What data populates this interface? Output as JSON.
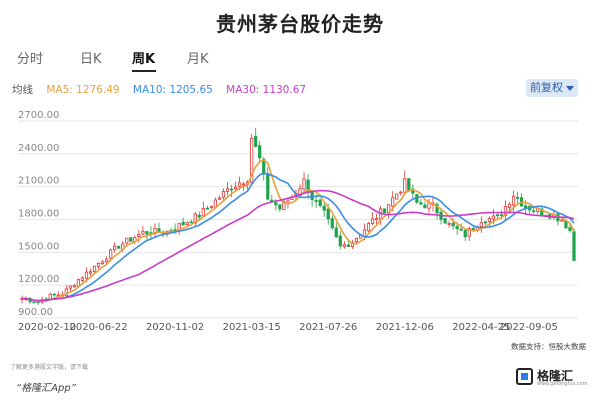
{
  "title": "贵州茅台股价走势",
  "tabs": [
    {
      "label": "分时",
      "active": false
    },
    {
      "label": "日K",
      "active": false
    },
    {
      "label": "周K",
      "active": true
    },
    {
      "label": "月K",
      "active": false
    }
  ],
  "ma_legend": {
    "label": "均线",
    "ma5": "MA5: 1276.49",
    "ma10": "MA10: 1205.65",
    "ma30": "MA30: 1130.67",
    "colors": {
      "ma5": "#e6a23c",
      "ma10": "#3a8ee6",
      "ma30": "#c83cc8"
    }
  },
  "adjust_button": "前复权",
  "footer_note": "了解更多港股文字版，请下载",
  "source": "数据支持：恒股大数据",
  "brand": "“格隆汇App”",
  "logo": {
    "name": "格隆汇",
    "url": "www.gelonghui.com"
  },
  "chart_data": {
    "type": "candlestick",
    "title": "贵州茅台股价走势",
    "y_ticks": [
      "2700.00",
      "2400.00",
      "2100.00",
      "1800.00",
      "1500.00",
      "1200.00",
      "900.00"
    ],
    "y_tick_values": [
      2700,
      2400,
      2100,
      1800,
      1500,
      1200,
      900
    ],
    "ylim": [
      900,
      2800
    ],
    "x_ticks": [
      "2020-02-10",
      "2020-06-22",
      "2020-11-02",
      "2021-03-15",
      "2021-07-26",
      "2021-12-06",
      "2022-04-25",
      "2022-09-05"
    ],
    "x_tick_index": [
      0,
      19,
      38,
      57,
      76,
      95,
      114,
      133
    ],
    "up_color": "#e03434",
    "down_color": "#1ea34a",
    "series_ma": [
      {
        "name": "MA5",
        "period": 5,
        "color": "#e6a23c"
      },
      {
        "name": "MA10",
        "period": 10,
        "color": "#3a8ee6"
      },
      {
        "name": "MA30",
        "period": 30,
        "color": "#c83cc8"
      }
    ],
    "close_anchors": [
      [
        0,
        1080
      ],
      [
        4,
        1050
      ],
      [
        7,
        1100
      ],
      [
        10,
        1120
      ],
      [
        14,
        1250
      ],
      [
        19,
        1400
      ],
      [
        24,
        1560
      ],
      [
        30,
        1680
      ],
      [
        36,
        1690
      ],
      [
        40,
        1760
      ],
      [
        44,
        1840
      ],
      [
        48,
        1970
      ],
      [
        52,
        2100
      ],
      [
        56,
        2180
      ],
      [
        57,
        2550
      ],
      [
        59,
        2350
      ],
      [
        61,
        2000
      ],
      [
        64,
        1900
      ],
      [
        67,
        2010
      ],
      [
        70,
        2150
      ],
      [
        72,
        2000
      ],
      [
        75,
        1850
      ],
      [
        79,
        1550
      ],
      [
        82,
        1600
      ],
      [
        86,
        1750
      ],
      [
        90,
        1900
      ],
      [
        95,
        2130
      ],
      [
        98,
        1950
      ],
      [
        102,
        1920
      ],
      [
        106,
        1750
      ],
      [
        110,
        1660
      ],
      [
        114,
        1800
      ],
      [
        118,
        1810
      ],
      [
        122,
        2030
      ],
      [
        125,
        1920
      ],
      [
        128,
        1880
      ],
      [
        131,
        1850
      ],
      [
        134,
        1800
      ],
      [
        136,
        1700
      ],
      [
        137,
        1430
      ]
    ]
  }
}
